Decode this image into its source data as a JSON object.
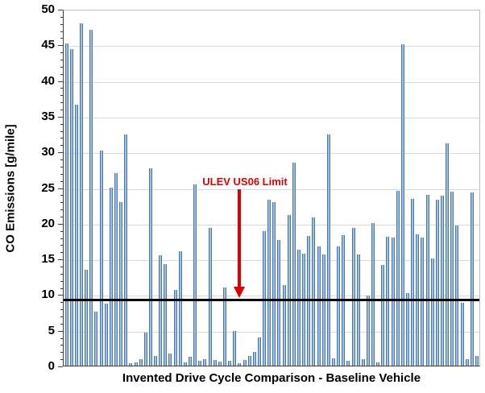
{
  "chart_data": {
    "type": "bar",
    "title": "",
    "xlabel": "Invented Drive Cycle Comparison - Baseline Vehicle",
    "ylabel": "CO Emissions [g/mile]",
    "ylim": [
      0,
      50
    ],
    "yticks": [
      0,
      5,
      10,
      15,
      20,
      25,
      30,
      35,
      40,
      45,
      50
    ],
    "grid": "horizontal gridlines every 5, light gray",
    "legend_position": "none",
    "x_tick_labels": "none",
    "values": [
      45.2,
      44.4,
      36.6,
      48.0,
      13.4,
      47.1,
      7.6,
      30.1,
      8.7,
      24.9,
      27.0,
      22.9,
      32.4,
      0.3,
      0.5,
      0.9,
      4.6,
      27.6,
      1.3,
      15.5,
      14.2,
      1.7,
      10.6,
      16.0,
      0.5,
      1.2,
      25.4,
      0.7,
      0.9,
      19.3,
      0.8,
      0.6,
      11.0,
      0.7,
      4.9,
      0.3,
      0.8,
      1.3,
      1.9,
      3.9,
      18.9,
      23.3,
      22.9,
      17.6,
      11.3,
      21.1,
      28.5,
      16.3,
      15.7,
      18.2,
      20.8,
      16.7,
      15.6,
      32.4,
      1.0,
      16.7,
      18.3,
      0.7,
      19.3,
      15.6,
      0.9,
      9.8,
      20.0,
      0.5,
      14.1,
      18.1,
      17.9,
      24.5,
      45.0,
      10.2,
      23.4,
      18.4,
      18.0,
      23.9,
      15.0,
      23.2,
      23.8,
      31.1,
      24.4,
      19.6,
      8.8,
      0.9,
      24.3,
      1.3
    ],
    "limit_line": {
      "value": 9.4,
      "label": "ULEV US06 Limit",
      "line_color": "#000000",
      "label_color": "#e00000",
      "arrow": "red vertical arrow pointing down from label to limit line"
    },
    "colors": {
      "bar_fill": "#9fbfdf",
      "bar_edge": "#4677ae",
      "bar_theme": "#4f81bd",
      "gridline": "#d9d9d9",
      "plot_border": "#bfbfbf",
      "axis_line": "#404040",
      "annotation_red": "#e00000",
      "background": "#ffffff"
    }
  }
}
